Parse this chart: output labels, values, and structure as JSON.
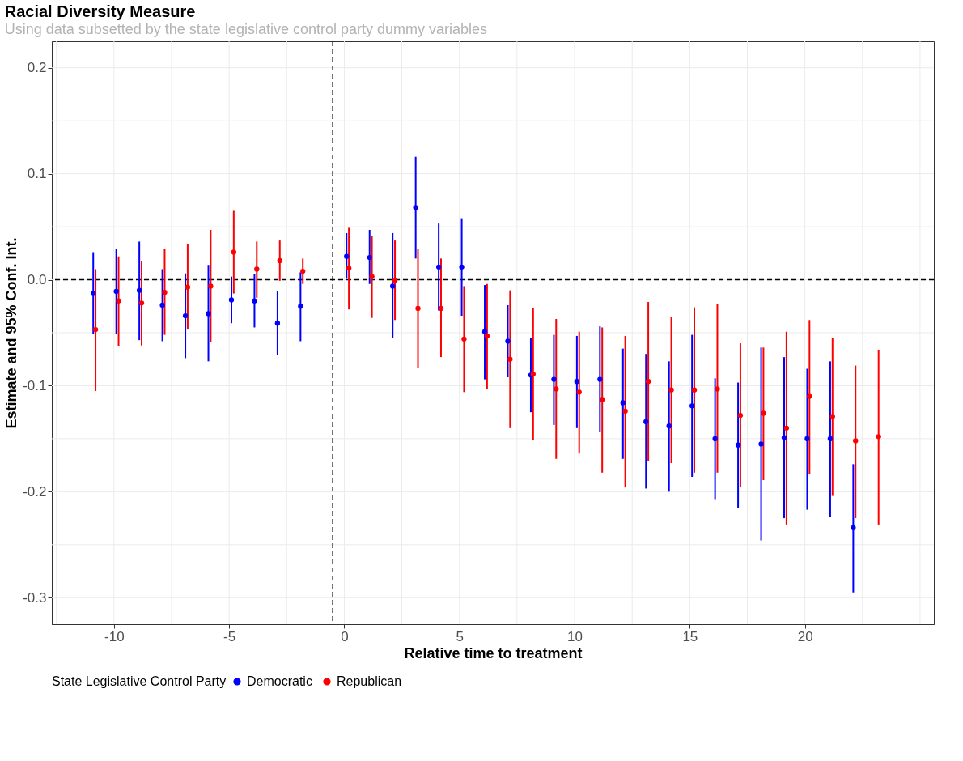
{
  "chart_data": {
    "type": "scatter",
    "title": "Racial Diversity Measure",
    "subtitle": "Using data subsetted by the state legislative control party dummy variables",
    "xlabel": "Relative time to treatment",
    "ylabel": "Estimate and 95% Conf. Int.",
    "legend_title": "State Legislative Control Party",
    "legend": "bottom",
    "grid": true,
    "marker": "circle",
    "xlim": [
      -12.7,
      25.6
    ],
    "ylim": [
      -0.325,
      0.225
    ],
    "xticks": [
      {
        "value": -12.5,
        "label": null
      },
      -10,
      {
        "value": -7.5,
        "label": null
      },
      -5,
      {
        "value": -2.5,
        "label": null
      },
      0,
      {
        "value": 2.5,
        "label": null
      },
      5,
      {
        "value": 7.5,
        "label": null
      },
      10,
      {
        "value": 12.5,
        "label": null
      },
      15,
      {
        "value": 17.5,
        "label": null
      },
      20,
      {
        "value": 22.5,
        "label": null
      },
      {
        "value": 25,
        "label": null
      }
    ],
    "yticks": [
      {
        "value": -0.3,
        "label": "-0.3"
      },
      {
        "value": -0.25,
        "label": null
      },
      {
        "value": -0.2,
        "label": "-0.2"
      },
      {
        "value": -0.15,
        "label": null
      },
      {
        "value": -0.1,
        "label": "-0.1"
      },
      {
        "value": -0.05,
        "label": null
      },
      {
        "value": 0,
        "label": "0.0"
      },
      {
        "value": 0.05,
        "label": null
      },
      {
        "value": 0.1,
        "label": "0.1"
      },
      {
        "value": 0.15,
        "label": null
      },
      {
        "value": 0.2,
        "label": "0.2"
      }
    ],
    "ref_lines": [
      {
        "axis": "x",
        "value": -0.5,
        "line_style": "dashed",
        "color": "#000000"
      },
      {
        "axis": "y",
        "value": 0,
        "line_style": "dashed",
        "color": "#000000"
      }
    ],
    "series": [
      {
        "name": "Democratic",
        "color": "#0000ff",
        "x": [
          -10.9,
          -9.9,
          -8.9,
          -7.9,
          -6.9,
          -5.9,
          -4.9,
          -3.9,
          -2.9,
          -1.9,
          0.1,
          1.1,
          2.1,
          3.1,
          4.1,
          5.1,
          6.1,
          7.1,
          8.1,
          9.1,
          10.1,
          11.1,
          12.1,
          13.1,
          14.1,
          15.1,
          16.1,
          17.1,
          18.1,
          19.1,
          20.1,
          21.1,
          22.1
        ],
        "values": [
          -0.013,
          -0.011,
          -0.01,
          -0.024,
          -0.034,
          -0.032,
          -0.019,
          -0.02,
          -0.041,
          -0.025,
          0.022,
          0.021,
          -0.006,
          0.068,
          0.012,
          0.012,
          -0.049,
          -0.058,
          -0.09,
          -0.094,
          -0.096,
          -0.094,
          -0.116,
          -0.134,
          -0.138,
          -0.119,
          -0.15,
          -0.156,
          -0.155,
          -0.149,
          -0.15,
          -0.15,
          -0.234
        ],
        "errors": [
          [
            -0.051,
            0.026
          ],
          [
            -0.051,
            0.029
          ],
          [
            -0.057,
            0.036
          ],
          [
            -0.058,
            0.01
          ],
          [
            -0.074,
            0.006
          ],
          [
            -0.077,
            0.014
          ],
          [
            -0.041,
            0.003
          ],
          [
            -0.045,
            0.005
          ],
          [
            -0.071,
            -0.011
          ],
          [
            -0.058,
            0.007
          ],
          [
            0.001,
            0.044
          ],
          [
            -0.004,
            0.047
          ],
          [
            -0.055,
            0.044
          ],
          [
            0.02,
            0.116
          ],
          [
            -0.029,
            0.053
          ],
          [
            -0.034,
            0.058
          ],
          [
            -0.094,
            -0.005
          ],
          [
            -0.092,
            -0.024
          ],
          [
            -0.125,
            -0.055
          ],
          [
            -0.137,
            -0.052
          ],
          [
            -0.14,
            -0.053
          ],
          [
            -0.144,
            -0.044
          ],
          [
            -0.169,
            -0.065
          ],
          [
            -0.197,
            -0.07
          ],
          [
            -0.2,
            -0.077
          ],
          [
            -0.186,
            -0.052
          ],
          [
            -0.207,
            -0.093
          ],
          [
            -0.215,
            -0.097
          ],
          [
            -0.246,
            -0.064
          ],
          [
            -0.225,
            -0.073
          ],
          [
            -0.217,
            -0.084
          ],
          [
            -0.224,
            -0.077
          ],
          [
            -0.295,
            -0.174
          ]
        ]
      },
      {
        "name": "Republican",
        "color": "#ff0000",
        "x": [
          -10.8,
          -9.8,
          -8.8,
          -7.8,
          -6.8,
          -5.8,
          -4.8,
          -3.8,
          -2.8,
          -1.8,
          0.2,
          1.2,
          2.2,
          3.2,
          4.2,
          5.2,
          6.2,
          7.2,
          8.2,
          9.2,
          10.2,
          11.2,
          12.2,
          13.2,
          14.2,
          15.2,
          16.2,
          17.2,
          18.2,
          19.2,
          20.2,
          21.2,
          22.2,
          23.2
        ],
        "values": [
          -0.047,
          -0.02,
          -0.022,
          -0.012,
          -0.007,
          -0.006,
          0.026,
          0.01,
          0.018,
          0.008,
          0.011,
          0.003,
          -0.001,
          -0.027,
          -0.027,
          -0.056,
          -0.053,
          -0.075,
          -0.089,
          -0.103,
          -0.106,
          -0.113,
          -0.124,
          -0.096,
          -0.104,
          -0.104,
          -0.103,
          -0.128,
          -0.126,
          -0.14,
          -0.11,
          -0.129,
          -0.152,
          -0.148
        ],
        "errors": [
          [
            -0.105,
            0.01
          ],
          [
            -0.063,
            0.022
          ],
          [
            -0.062,
            0.018
          ],
          [
            -0.052,
            0.029
          ],
          [
            -0.047,
            0.034
          ],
          [
            -0.059,
            0.047
          ],
          [
            -0.013,
            0.065
          ],
          [
            -0.017,
            0.036
          ],
          [
            -0.001,
            0.037
          ],
          [
            -0.004,
            0.02
          ],
          [
            -0.028,
            0.049
          ],
          [
            -0.036,
            0.041
          ],
          [
            -0.038,
            0.037
          ],
          [
            -0.083,
            0.029
          ],
          [
            -0.073,
            0.02
          ],
          [
            -0.106,
            -0.006
          ],
          [
            -0.103,
            -0.004
          ],
          [
            -0.14,
            -0.01
          ],
          [
            -0.151,
            -0.027
          ],
          [
            -0.169,
            -0.037
          ],
          [
            -0.164,
            -0.049
          ],
          [
            -0.182,
            -0.045
          ],
          [
            -0.196,
            -0.053
          ],
          [
            -0.171,
            -0.021
          ],
          [
            -0.173,
            -0.035
          ],
          [
            -0.182,
            -0.026
          ],
          [
            -0.182,
            -0.023
          ],
          [
            -0.196,
            -0.06
          ],
          [
            -0.189,
            -0.064
          ],
          [
            -0.231,
            -0.049
          ],
          [
            -0.183,
            -0.038
          ],
          [
            -0.204,
            -0.055
          ],
          [
            -0.225,
            -0.081
          ],
          [
            -0.231,
            -0.066
          ]
        ]
      }
    ]
  }
}
